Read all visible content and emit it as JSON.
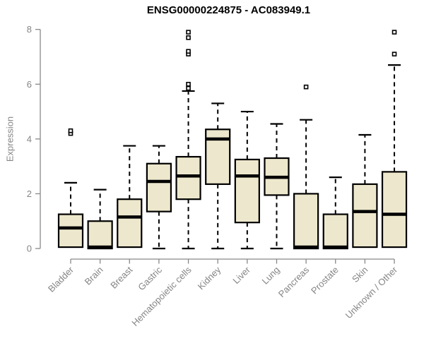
{
  "title": "ENSG00000224875 - AC083949.1",
  "colors": {
    "box_fill": "#ede8cd",
    "box_border": "#000000",
    "median": "#000000",
    "whisker": "#000000",
    "outlier_stroke": "#000000",
    "axis_line": "#888888",
    "axis_text": "#858585",
    "title_text": "#000000",
    "background": "#ffffff"
  },
  "chart_data": {
    "type": "boxplot",
    "title": "ENSG00000224875 - AC083949.1",
    "xlabel": "",
    "ylabel": "Expression",
    "ylim": [
      0,
      8
    ],
    "yticks": [
      0,
      2,
      4,
      6,
      8
    ],
    "grid": false,
    "legend": "none",
    "categories": [
      "Bladder",
      "Brain",
      "Breast",
      "Gastric",
      "Hematopoietic cells",
      "Kidney",
      "Liver",
      "Lung",
      "Pancreas",
      "Prostate",
      "Skin",
      "Unknown / Other"
    ],
    "boxes": [
      {
        "label": "Bladder",
        "whisker_low": 0.05,
        "q1": 0.05,
        "median": 0.75,
        "q3": 1.25,
        "whisker_high": 2.4,
        "outliers": [
          4.2,
          4.3
        ]
      },
      {
        "label": "Brain",
        "whisker_low": 0.0,
        "q1": 0.0,
        "median": 0.05,
        "q3": 1.0,
        "whisker_high": 2.15,
        "outliers": []
      },
      {
        "label": "Breast",
        "whisker_low": 0.05,
        "q1": 0.05,
        "median": 1.15,
        "q3": 1.8,
        "whisker_high": 3.75,
        "outliers": []
      },
      {
        "label": "Gastric",
        "whisker_low": 0.0,
        "q1": 1.35,
        "median": 2.45,
        "q3": 3.1,
        "whisker_high": 3.75,
        "outliers": []
      },
      {
        "label": "Hematopoietic cells",
        "whisker_low": 0.0,
        "q1": 1.8,
        "median": 2.65,
        "q3": 3.35,
        "whisker_high": 5.75,
        "outliers": [
          5.85,
          6.0,
          7.1,
          7.2,
          7.7,
          7.9
        ]
      },
      {
        "label": "Kidney",
        "whisker_low": 0.0,
        "q1": 2.35,
        "median": 4.0,
        "q3": 4.35,
        "whisker_high": 5.3,
        "outliers": []
      },
      {
        "label": "Liver",
        "whisker_low": 0.0,
        "q1": 0.95,
        "median": 2.65,
        "q3": 3.25,
        "whisker_high": 5.0,
        "outliers": []
      },
      {
        "label": "Lung",
        "whisker_low": 0.0,
        "q1": 1.95,
        "median": 2.6,
        "q3": 3.3,
        "whisker_high": 4.55,
        "outliers": []
      },
      {
        "label": "Pancreas",
        "whisker_low": 0.0,
        "q1": 0.0,
        "median": 0.05,
        "q3": 2.0,
        "whisker_high": 4.7,
        "outliers": [
          5.9
        ]
      },
      {
        "label": "Prostate",
        "whisker_low": 0.0,
        "q1": 0.0,
        "median": 0.05,
        "q3": 1.25,
        "whisker_high": 2.6,
        "outliers": []
      },
      {
        "label": "Skin",
        "whisker_low": 0.05,
        "q1": 0.05,
        "median": 1.35,
        "q3": 2.35,
        "whisker_high": 4.15,
        "outliers": []
      },
      {
        "label": "Unknown / Other",
        "whisker_low": 0.05,
        "q1": 0.05,
        "median": 1.25,
        "q3": 2.8,
        "whisker_high": 6.7,
        "outliers": [
          7.1,
          7.9
        ]
      }
    ]
  }
}
